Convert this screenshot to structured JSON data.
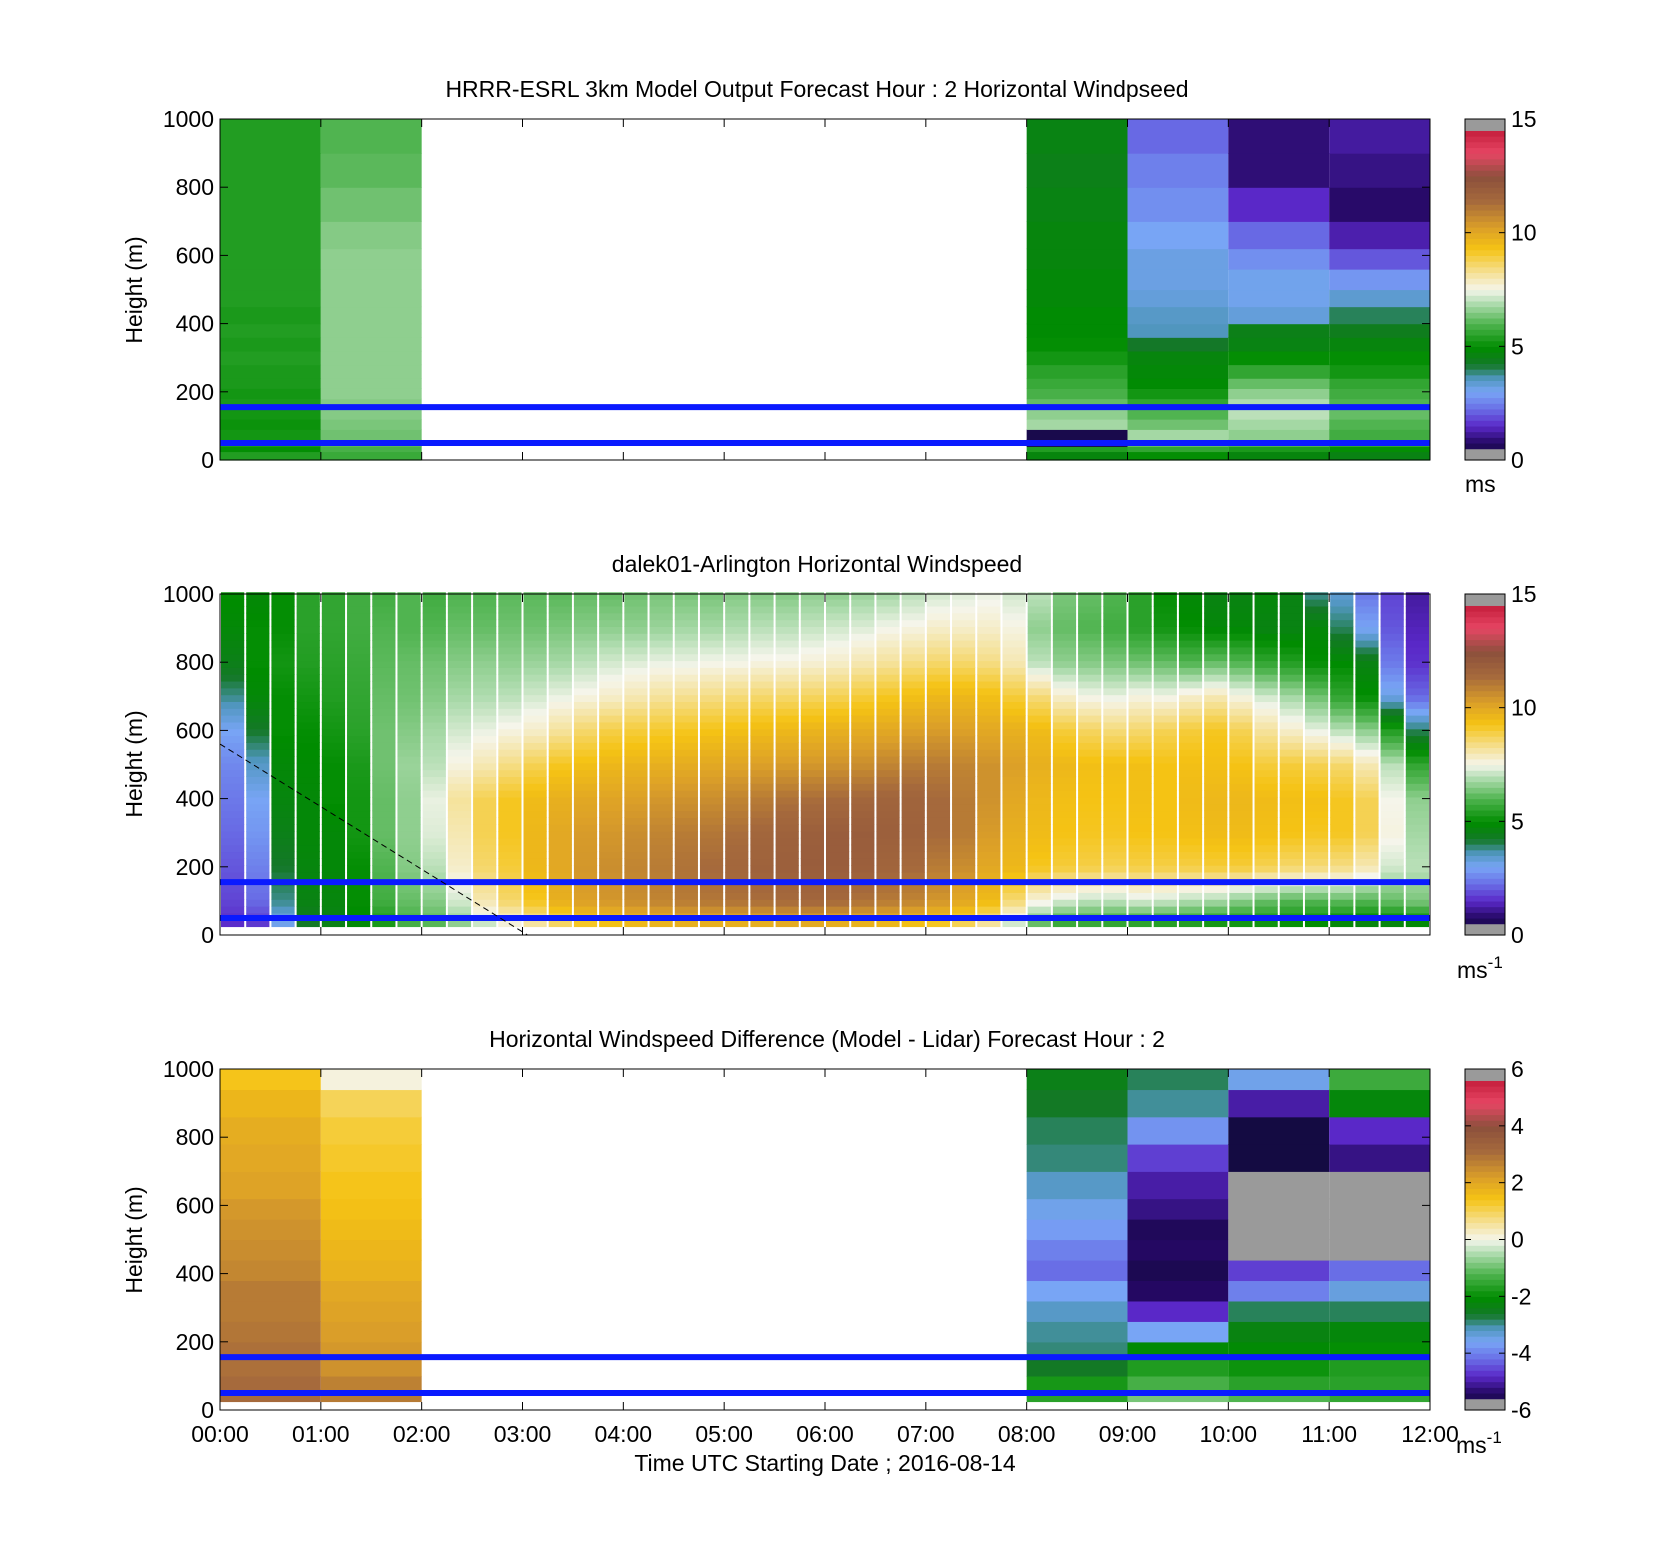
{
  "chart_data": [
    {
      "type": "heatmap",
      "title": "HRRR-ESRL 3km Model Output   Forecast Hour : 2 Horizontal Windpseed",
      "ylabel": "Height (m)",
      "xlabel": "",
      "ylim": [
        0,
        1000
      ],
      "xlim": [
        0,
        12
      ],
      "yticks": [
        "0",
        "200",
        "400",
        "600",
        "800",
        "1000"
      ],
      "colorbar": {
        "ticks": [
          "0",
          "5",
          "10",
          "15"
        ],
        "range": [
          0,
          15
        ],
        "units": "ms",
        "scale": "speed"
      },
      "hlines": [
        50,
        155
      ],
      "height_levels": [
        0,
        25,
        40,
        60,
        90,
        120,
        150,
        180,
        210,
        240,
        280,
        320,
        360,
        400,
        450,
        500,
        560,
        620,
        700,
        800,
        900,
        1000
      ],
      "columns": [
        {
          "start_hour": 0,
          "end_hour": 1,
          "values": [
            5.4,
            5.0,
            5.3,
            5.2,
            5.1,
            5.2,
            5.3,
            5.2,
            5.3,
            5.3,
            5.4,
            5.3,
            5.4,
            5.3,
            5.4,
            5.4,
            5.4,
            5.4,
            5.4,
            5.4,
            5.4
          ]
        },
        {
          "start_hour": 1,
          "end_hour": 2,
          "values": [
            5.7,
            5.9,
            6.1,
            6.3,
            6.4,
            6.5,
            6.5,
            6.6,
            6.6,
            6.6,
            6.6,
            6.6,
            6.6,
            6.6,
            6.6,
            6.6,
            6.6,
            6.5,
            6.3,
            6.1,
            6.0
          ]
        },
        {
          "start_hour": 8,
          "end_hour": 9,
          "values": [
            4.7,
            5.4,
            0.4,
            0.4,
            6.8,
            6.6,
            6.2,
            5.9,
            5.7,
            5.5,
            5.2,
            5.0,
            4.9,
            4.9,
            4.8,
            4.8,
            4.7,
            4.7,
            4.6,
            4.5,
            4.6
          ]
        },
        {
          "start_hour": 9,
          "end_hour": 10,
          "values": [
            5.0,
            5.6,
            6.2,
            6.8,
            6.3,
            6.0,
            5.6,
            5.2,
            4.9,
            4.8,
            4.7,
            4.2,
            3.6,
            3.5,
            3.3,
            3.2,
            3.2,
            3.0,
            2.7,
            2.5,
            2.2
          ]
        },
        {
          "start_hour": 10,
          "end_hour": 11,
          "values": [
            4.7,
            5.3,
            6.0,
            6.6,
            6.8,
            7.0,
            6.9,
            6.6,
            6.2,
            5.6,
            5.0,
            4.6,
            4.5,
            3.3,
            3.1,
            3.1,
            2.7,
            2.2,
            1.5,
            0.9,
            0.9
          ]
        },
        {
          "start_hour": 11,
          "end_hour": 12,
          "values": [
            4.6,
            5.0,
            5.6,
            5.8,
            6.0,
            6.2,
            6.0,
            5.8,
            5.6,
            5.2,
            5.0,
            4.7,
            4.4,
            4.0,
            3.4,
            2.8,
            2.0,
            1.3,
            0.8,
            1.0,
            1.2
          ]
        }
      ]
    },
    {
      "type": "heatmap",
      "title": "dalek01-Arlington  Horizontal Windspeed",
      "ylabel": "Height (m)",
      "xlabel": "",
      "ylim": [
        0,
        1000
      ],
      "xlim": [
        0,
        12
      ],
      "yticks": [
        "0",
        "200",
        "400",
        "600",
        "800",
        "1000"
      ],
      "colorbar": {
        "ticks": [
          "0",
          "5",
          "10",
          "15"
        ],
        "range": [
          0,
          15
        ],
        "units": "ms",
        "units_sup": "-1",
        "scale": "speed"
      },
      "hlines": [
        50,
        155
      ],
      "line": {
        "x": [
          0,
          3.05
        ],
        "y": [
          560,
          0
        ]
      },
      "slot_hours": 0.25,
      "slot_starts": [
        0,
        0.25,
        0.5,
        0.75,
        1,
        1.25,
        1.5,
        1.75,
        2,
        2.25,
        2.5,
        2.75,
        3,
        3.25,
        3.5,
        3.75,
        4,
        4.25,
        4.5,
        4.75,
        5,
        5.25,
        5.5,
        5.75,
        6,
        6.25,
        6.5,
        6.75,
        7,
        7.25,
        7.5,
        7.75,
        8,
        8.25,
        8.5,
        8.75,
        9,
        9.25,
        9.5,
        9.75,
        10,
        10.25,
        10.5,
        10.75,
        11,
        11.25,
        11.5,
        11.75
      ],
      "profile_heights": [
        25,
        100,
        200,
        300,
        400,
        500,
        600,
        700,
        800,
        900,
        1000
      ],
      "profiles": [
        [
          1.5,
          1.8,
          2.0,
          2.2,
          2.4,
          2.6,
          3.0,
          3.8,
          4.5,
          4.8,
          5.0
        ],
        [
          1.6,
          2.2,
          2.5,
          2.8,
          3.0,
          3.5,
          4.2,
          4.8,
          5.0,
          5.0,
          4.8
        ],
        [
          3.0,
          3.8,
          4.2,
          4.5,
          4.7,
          4.8,
          5.0,
          5.0,
          5.2,
          5.0,
          5.0
        ],
        [
          4.2,
          4.6,
          4.7,
          4.8,
          4.8,
          4.9,
          5.0,
          5.2,
          5.4,
          5.5,
          5.5
        ],
        [
          4.5,
          4.7,
          4.8,
          4.8,
          5.0,
          5.0,
          5.2,
          5.4,
          5.5,
          5.6,
          5.6
        ],
        [
          4.8,
          5.0,
          5.0,
          5.2,
          5.2,
          5.3,
          5.5,
          5.6,
          5.7,
          5.8,
          5.8
        ],
        [
          5.2,
          5.8,
          6.0,
          6.2,
          6.2,
          6.3,
          6.3,
          6.2,
          6.1,
          6.0,
          5.8
        ],
        [
          5.8,
          6.2,
          6.5,
          6.6,
          6.6,
          6.7,
          6.5,
          6.3,
          6.2,
          6.0,
          6.0
        ],
        [
          6.0,
          6.5,
          7.0,
          7.3,
          7.4,
          7.0,
          6.8,
          6.5,
          6.3,
          6.0,
          5.8
        ],
        [
          6.5,
          7.2,
          7.8,
          8.0,
          8.2,
          7.6,
          7.2,
          6.8,
          6.5,
          6.2,
          6.0
        ],
        [
          7.0,
          8.0,
          8.6,
          8.8,
          8.8,
          8.0,
          7.4,
          6.9,
          6.6,
          6.2,
          6.0
        ],
        [
          7.5,
          8.6,
          9.0,
          9.2,
          9.2,
          8.4,
          7.6,
          7.0,
          6.6,
          6.3,
          6.1
        ],
        [
          8.0,
          9.2,
          9.6,
          9.6,
          9.5,
          8.8,
          7.8,
          7.2,
          6.7,
          6.3,
          6.1
        ],
        [
          8.5,
          9.8,
          10.0,
          10.0,
          9.8,
          9.2,
          8.2,
          7.4,
          6.8,
          6.4,
          6.1
        ],
        [
          9.0,
          10.2,
          10.4,
          10.3,
          10.0,
          9.4,
          8.6,
          7.6,
          7.0,
          6.5,
          6.2
        ],
        [
          9.2,
          10.4,
          10.6,
          10.4,
          10.1,
          9.6,
          8.9,
          7.8,
          7.2,
          6.6,
          6.2
        ],
        [
          9.4,
          10.6,
          10.8,
          10.6,
          10.2,
          9.7,
          9.0,
          8.0,
          7.3,
          6.6,
          6.3
        ],
        [
          9.5,
          10.8,
          11.0,
          10.8,
          10.4,
          9.8,
          9.1,
          8.2,
          7.4,
          6.7,
          6.4
        ],
        [
          9.6,
          11.0,
          11.2,
          11.0,
          10.5,
          9.9,
          9.2,
          8.3,
          7.4,
          6.8,
          6.4
        ],
        [
          9.6,
          11.1,
          11.4,
          11.1,
          10.6,
          10.0,
          9.3,
          8.4,
          7.5,
          6.8,
          6.4
        ],
        [
          9.6,
          11.2,
          11.5,
          11.3,
          10.8,
          10.1,
          9.4,
          8.5,
          7.5,
          6.9,
          6.5
        ],
        [
          9.6,
          11.3,
          11.7,
          11.5,
          11.0,
          10.2,
          9.5,
          8.6,
          7.6,
          7.0,
          6.5
        ],
        [
          9.7,
          11.4,
          11.8,
          11.7,
          11.2,
          10.3,
          9.6,
          8.6,
          7.6,
          7.0,
          6.5
        ],
        [
          9.7,
          11.5,
          11.9,
          11.8,
          11.3,
          10.4,
          9.7,
          8.7,
          7.7,
          7.1,
          6.6
        ],
        [
          9.6,
          11.4,
          11.9,
          11.9,
          11.4,
          10.5,
          9.8,
          8.8,
          7.8,
          7.2,
          6.6
        ],
        [
          9.5,
          11.2,
          11.8,
          11.9,
          11.5,
          10.6,
          9.9,
          9.0,
          8.0,
          7.3,
          6.7
        ],
        [
          9.4,
          11.0,
          11.6,
          11.8,
          11.6,
          10.8,
          10.0,
          9.2,
          8.2,
          7.5,
          6.8
        ],
        [
          9.2,
          10.8,
          11.4,
          11.7,
          11.6,
          11.0,
          10.2,
          9.4,
          8.4,
          7.6,
          7.0
        ],
        [
          9.0,
          10.4,
          11.0,
          11.4,
          11.4,
          11.0,
          10.3,
          9.6,
          8.6,
          7.8,
          7.2
        ],
        [
          8.6,
          10.0,
          10.6,
          11.0,
          11.0,
          10.8,
          10.2,
          9.6,
          8.6,
          7.8,
          7.3
        ],
        [
          8.0,
          9.5,
          10.0,
          10.3,
          10.5,
          10.5,
          10.0,
          9.4,
          8.4,
          7.8,
          7.4
        ],
        [
          7.0,
          8.5,
          9.6,
          9.8,
          10.0,
          10.2,
          9.8,
          9.0,
          8.0,
          7.6,
          7.2
        ],
        [
          6.0,
          7.6,
          9.2,
          9.5,
          9.6,
          9.8,
          9.5,
          8.5,
          7.0,
          6.6,
          7.0
        ],
        [
          5.5,
          7.2,
          9.0,
          9.3,
          9.4,
          9.6,
          9.0,
          7.8,
          6.6,
          6.2,
          6.4
        ],
        [
          5.5,
          7.0,
          8.9,
          9.2,
          9.3,
          9.4,
          8.7,
          7.5,
          6.5,
          6.0,
          6.2
        ],
        [
          5.4,
          7.0,
          8.8,
          9.2,
          9.3,
          9.4,
          8.5,
          7.4,
          6.4,
          5.8,
          6.0
        ],
        [
          5.3,
          7.2,
          8.9,
          9.3,
          9.4,
          9.4,
          8.6,
          7.6,
          6.3,
          5.5,
          5.5
        ],
        [
          5.2,
          7.1,
          8.9,
          9.3,
          9.3,
          9.3,
          8.8,
          7.5,
          6.2,
          5.2,
          5.0
        ],
        [
          5.2,
          6.9,
          8.9,
          9.4,
          9.5,
          9.4,
          9.0,
          7.8,
          6.0,
          5.0,
          4.8
        ],
        [
          5.0,
          6.8,
          9.0,
          9.5,
          9.6,
          9.4,
          9.2,
          8.0,
          6.2,
          4.8,
          4.6
        ],
        [
          5.0,
          6.5,
          9.0,
          9.5,
          9.6,
          9.3,
          8.8,
          7.6,
          6.0,
          4.8,
          4.6
        ],
        [
          5.0,
          6.2,
          8.8,
          9.4,
          9.5,
          9.0,
          8.2,
          7.2,
          5.6,
          4.6,
          4.8
        ],
        [
          4.9,
          6.0,
          8.6,
          9.3,
          9.4,
          9.0,
          7.8,
          6.8,
          5.4,
          4.6,
          4.6
        ],
        [
          4.8,
          6.0,
          8.5,
          9.2,
          9.4,
          8.8,
          7.4,
          6.3,
          5.0,
          4.8,
          3.8
        ],
        [
          4.6,
          6.1,
          8.4,
          9.2,
          9.2,
          8.6,
          7.0,
          5.6,
          4.9,
          4.0,
          3.4
        ],
        [
          4.5,
          6.0,
          8.0,
          8.8,
          8.8,
          8.0,
          6.6,
          5.0,
          4.6,
          3.0,
          2.4
        ],
        [
          4.5,
          6.2,
          7.2,
          7.6,
          7.5,
          7.0,
          5.4,
          3.2,
          2.4,
          2.0,
          1.8
        ],
        [
          4.6,
          6.4,
          7.0,
          6.8,
          6.6,
          5.6,
          4.0,
          2.2,
          1.6,
          1.4,
          1.2
        ]
      ]
    },
    {
      "type": "heatmap",
      "title": "Horizontal Windspeed Difference (Model - Lidar) Forecast Hour : 2",
      "ylabel": "Height (m)",
      "xlabel": "Time UTC  Starting Date ; 2016-08-14",
      "ylim": [
        0,
        1000
      ],
      "xlim": [
        0,
        12
      ],
      "yticks": [
        "0",
        "200",
        "400",
        "600",
        "800",
        "1000"
      ],
      "xticks": [
        "00:00",
        "01:00",
        "02:00",
        "03:00",
        "04:00",
        "05:00",
        "06:00",
        "07:00",
        "08:00",
        "09:00",
        "10:00",
        "11:00",
        "12:00"
      ],
      "colorbar": {
        "ticks": [
          "-6",
          "-4",
          "-2",
          "0",
          "2",
          "4",
          "6"
        ],
        "range": [
          -6,
          6
        ],
        "units": "ms",
        "units_sup": "-1",
        "scale": "difference"
      },
      "hlines": [
        50,
        155
      ],
      "height_levels": [
        25,
        60,
        100,
        150,
        200,
        260,
        320,
        380,
        440,
        500,
        560,
        620,
        700,
        780,
        860,
        940,
        1000
      ],
      "columns": [
        {
          "start_hour": 0,
          "end_hour": 1,
          "values": [
            3.1,
            3.1,
            3.0,
            3.0,
            2.9,
            2.8,
            2.8,
            2.6,
            2.5,
            2.4,
            2.3,
            2.1,
            2.0,
            1.9,
            1.7,
            1.4
          ]
        },
        {
          "start_hour": 1,
          "end_hour": 2,
          "values": [
            2.8,
            2.7,
            2.4,
            2.3,
            2.2,
            2.1,
            2.0,
            1.8,
            1.7,
            1.6,
            1.5,
            1.4,
            1.3,
            1.2,
            1.0,
            0.1
          ]
        },
        {
          "start_hour": 8,
          "end_hour": 9,
          "values": [
            -1.6,
            -1.8,
            -2.6,
            -2.9,
            -3.0,
            -3.2,
            -3.6,
            -4.2,
            -4.0,
            -3.7,
            -3.5,
            -3.2,
            -2.9,
            -2.8,
            -2.6,
            -2.4
          ]
        },
        {
          "start_hour": 9,
          "end_hour": 10,
          "values": [
            -0.9,
            -1.3,
            -1.7,
            -2.1,
            -3.6,
            -4.8,
            -5.4,
            -5.6,
            -5.4,
            -5.5,
            -5.2,
            -5.0,
            -4.6,
            -3.8,
            -3.0,
            -2.8
          ]
        },
        {
          "start_hour": 10,
          "end_hour": 11,
          "values": [
            -1.2,
            -1.6,
            -1.9,
            -2.1,
            -2.3,
            -2.8,
            -4.0,
            -4.6,
            null,
            null,
            null,
            null,
            -5.8,
            -5.8,
            -5.0,
            -3.5
          ]
        },
        {
          "start_hour": 11,
          "end_hour": 12,
          "values": [
            -1.5,
            -1.6,
            -1.7,
            -2.0,
            -2.2,
            -2.8,
            -3.4,
            -4.2,
            null,
            null,
            null,
            null,
            -5.2,
            -4.8,
            -2.2,
            -1.4
          ]
        }
      ]
    }
  ]
}
